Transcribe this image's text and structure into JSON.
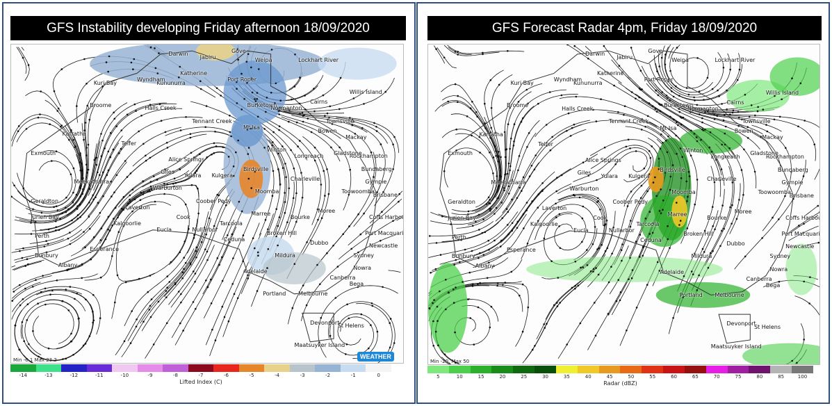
{
  "colors": {
    "frame_border": "#2f4f7f",
    "title_bg": "#000000",
    "title_text": "#ffffff"
  },
  "left_panel": {
    "title": "GFS Instability developing Friday afternoon 18/09/2020",
    "corner_label": "Min -6.1 Max 23.2",
    "logo_text": "WEATHER",
    "colorbar": {
      "caption": "Lifted Index (C)",
      "ticks": [
        "-14",
        "-13",
        "-12",
        "-11",
        "-10",
        "-9",
        "-8",
        "-7",
        "-6",
        "-5",
        "-4",
        "-3",
        "-2",
        "-1",
        "0"
      ],
      "colors": [
        "#1aa83c",
        "#3ee08a",
        "#2323c8",
        "#6a2bd8",
        "#f0c8f0",
        "#e48ce8",
        "#c060d8",
        "#8b0a1e",
        "#e8261e",
        "#e6862a",
        "#e8d28a",
        "#b8c4cc",
        "#98b4d4",
        "#c8dcf0",
        "#f4f4f4"
      ]
    },
    "places": [
      "Darwin",
      "Jabiru",
      "Gove",
      "Weipa",
      "Lockhart River",
      "Katherine",
      "Kununurra",
      "Port Roper",
      "Kuri Bay",
      "Wyndham",
      "Willis Island",
      "Broome",
      "Halls Creek",
      "Cairns",
      "Burketown",
      "Normanton",
      "Tennant Creek",
      "Townsville",
      "Bowen",
      "Mt Isa",
      "Mackay",
      "Karratha",
      "Telfer",
      "Longreach",
      "Rockhampton",
      "Exmouth",
      "Winton",
      "Alice Springs",
      "Gladstone",
      "Bundaberg",
      "Giles",
      "Yulara",
      "Birdsville",
      "Charleville",
      "Gympie",
      "Meekatharra",
      "Kulgera",
      "Brisbane",
      "Warburton",
      "Toowoomba",
      "Moomba",
      "Coober Pedy",
      "Laverton",
      "Geraldton",
      "Marree",
      "Moree",
      "Coffs Harbour",
      "Jurien Bay",
      "Kalgoorlie",
      "Cook",
      "Bourke",
      "Eucla",
      "Nullarbor",
      "Tarcoola",
      "Port Macquarie",
      "Perth",
      "Broken Hill",
      "Ceduna",
      "Dubbo",
      "Newcastle",
      "Bunbury",
      "Esperance",
      "Sydney",
      "Albany",
      "Mildura",
      "Nowra",
      "Adelaide",
      "Canberra",
      "Portland",
      "Melbourne",
      "Bega",
      "Devonport",
      "St Helens",
      "Maatsuyker Island"
    ]
  },
  "right_panel": {
    "title": "GFS Forecast Radar 4pm, Friday 18/09/2020",
    "corner_label": "Min -20, Max 50",
    "colorbar": {
      "caption": "Radar (dBZ)",
      "ticks": [
        "5",
        "10",
        "15",
        "20",
        "25",
        "30",
        "35",
        "40",
        "45",
        "50",
        "55",
        "60",
        "65",
        "70",
        "75",
        "80",
        "85",
        "100"
      ],
      "colors": [
        "#7ee87e",
        "#4cd04c",
        "#2bb02b",
        "#1a8c1a",
        "#0f6a0f",
        "#0a4f0a",
        "#f0f032",
        "#f0c828",
        "#e89a1e",
        "#e86a14",
        "#e03214",
        "#c81414",
        "#961010",
        "#e61ee6",
        "#a01ea0",
        "#6e146e",
        "#b4b4b4",
        "#787878"
      ]
    },
    "places": [
      "Darwin",
      "Jabiru",
      "Gove",
      "Weipa",
      "Lockhart River",
      "Katherine",
      "Kununurra",
      "Port Roper",
      "Kuri Bay",
      "Wyndham",
      "Willis Island",
      "Broome",
      "Halls Creek",
      "Cairns",
      "Burketown",
      "Normanton",
      "Tennant Creek",
      "Townsville",
      "Bowen",
      "Mt Isa",
      "Mackay",
      "Karratha",
      "Telfer",
      "Longreach",
      "Rockhampton",
      "Exmouth",
      "Winton",
      "Alice Springs",
      "Gladstone",
      "Bundaberg",
      "Giles",
      "Yulara",
      "Birdsville",
      "Charleville",
      "Gympie",
      "Meekatharra",
      "Kulgera",
      "Brisbane",
      "Warburton",
      "Toowoomba",
      "Moomba",
      "Coober Pedy",
      "Laverton",
      "Geraldton",
      "Marree",
      "Moree",
      "Coffs Harbour",
      "Jurien Bay",
      "Kalgoorlie",
      "Cook",
      "Bourke",
      "Eucla",
      "Nullarbor",
      "Tarcoola",
      "Port Macquarie",
      "Perth",
      "Broken Hill",
      "Ceduna",
      "Dubbo",
      "Newcastle",
      "Bunbury",
      "Esperance",
      "Sydney",
      "Albany",
      "Mildura",
      "Nowra",
      "Adelaide",
      "Canberra",
      "Portland",
      "Melbourne",
      "Bega",
      "Devonport",
      "St Helens",
      "Maatsuyker Island"
    ]
  }
}
